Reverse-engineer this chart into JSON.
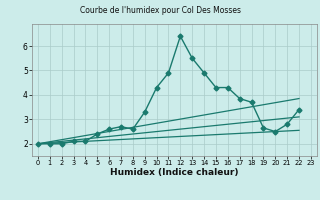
{
  "title": "Courbe de l'humidex pour Col Des Mosses",
  "xlabel": "Humidex (Indice chaleur)",
  "background_color": "#ccecea",
  "grid_color": "#aaccca",
  "line_color": "#1a7a6e",
  "xlim": [
    -0.5,
    23.5
  ],
  "ylim": [
    1.5,
    6.9
  ],
  "xticks": [
    0,
    1,
    2,
    3,
    4,
    5,
    6,
    7,
    8,
    9,
    10,
    11,
    12,
    13,
    14,
    15,
    16,
    17,
    18,
    19,
    20,
    21,
    22,
    23
  ],
  "yticks": [
    2,
    3,
    4,
    5,
    6
  ],
  "series": [
    {
      "x": [
        0,
        1,
        2,
        3,
        4,
        5,
        6,
        7,
        8,
        9,
        10,
        11,
        12,
        13,
        14,
        15,
        16,
        17,
        18,
        19,
        20,
        21,
        22
      ],
      "y": [
        2.0,
        2.0,
        2.0,
        2.1,
        2.1,
        2.4,
        2.6,
        2.7,
        2.6,
        3.3,
        4.3,
        4.9,
        6.4,
        5.5,
        4.9,
        4.3,
        4.3,
        3.85,
        3.7,
        2.65,
        2.5,
        2.8,
        3.4
      ],
      "marker": "D",
      "markersize": 2.5,
      "linewidth": 1.0,
      "zorder": 5
    },
    {
      "x": [
        0,
        22
      ],
      "y": [
        2.0,
        3.85
      ],
      "marker": null,
      "linewidth": 0.9,
      "zorder": 3
    },
    {
      "x": [
        0,
        22
      ],
      "y": [
        2.0,
        2.55
      ],
      "marker": null,
      "linewidth": 0.9,
      "zorder": 3
    },
    {
      "x": [
        0,
        22
      ],
      "y": [
        2.0,
        3.1
      ],
      "marker": null,
      "linewidth": 0.9,
      "zorder": 3
    }
  ]
}
